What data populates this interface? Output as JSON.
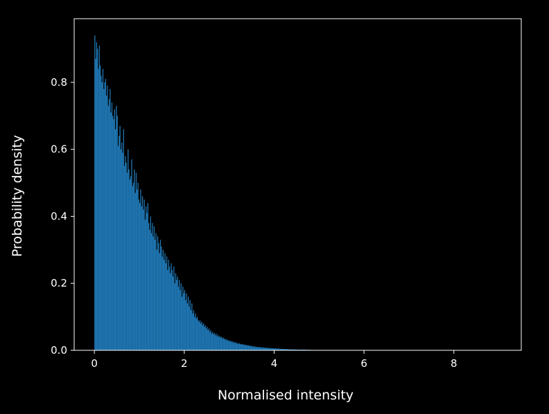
{
  "chart_data": {
    "type": "bar",
    "xlabel": "Normalised intensity",
    "ylabel": "Probability density",
    "xlim": [
      -0.45,
      9.5
    ],
    "ylim": [
      0,
      0.99
    ],
    "grid": false,
    "colors": {
      "background": "#000000",
      "bar": "#1f77b4",
      "axes": "#ffffff",
      "text": "#ffffff"
    },
    "x_ticks": [
      {
        "value": 0,
        "label": "0"
      },
      {
        "value": 2,
        "label": "2"
      },
      {
        "value": 4,
        "label": "4"
      },
      {
        "value": 6,
        "label": "6"
      },
      {
        "value": 8,
        "label": "8"
      }
    ],
    "y_ticks": [
      {
        "value": 0,
        "label": "0.0"
      },
      {
        "value": 0.2,
        "label": "0.2"
      },
      {
        "value": 0.4,
        "label": "0.4"
      },
      {
        "value": 0.6,
        "label": "0.6"
      },
      {
        "value": 0.8,
        "label": "0.8"
      }
    ],
    "bin_width": 0.02,
    "x_start": 0.0,
    "values": [
      0.94,
      0.87,
      0.92,
      0.9,
      0.84,
      0.91,
      0.85,
      0.82,
      0.8,
      0.84,
      0.78,
      0.8,
      0.81,
      0.76,
      0.79,
      0.73,
      0.75,
      0.78,
      0.71,
      0.74,
      0.7,
      0.69,
      0.72,
      0.66,
      0.73,
      0.7,
      0.61,
      0.64,
      0.67,
      0.6,
      0.62,
      0.59,
      0.66,
      0.55,
      0.58,
      0.56,
      0.53,
      0.6,
      0.54,
      0.51,
      0.52,
      0.57,
      0.49,
      0.5,
      0.54,
      0.47,
      0.53,
      0.48,
      0.5,
      0.45,
      0.44,
      0.48,
      0.43,
      0.46,
      0.42,
      0.45,
      0.39,
      0.43,
      0.41,
      0.44,
      0.38,
      0.36,
      0.4,
      0.35,
      0.38,
      0.34,
      0.37,
      0.33,
      0.35,
      0.3,
      0.34,
      0.32,
      0.29,
      0.33,
      0.31,
      0.28,
      0.3,
      0.27,
      0.29,
      0.26,
      0.28,
      0.24,
      0.27,
      0.25,
      0.23,
      0.26,
      0.24,
      0.22,
      0.25,
      0.2,
      0.23,
      0.21,
      0.22,
      0.19,
      0.21,
      0.18,
      0.2,
      0.16,
      0.19,
      0.17,
      0.18,
      0.15,
      0.17,
      0.14,
      0.16,
      0.13,
      0.15,
      0.12,
      0.14,
      0.11,
      0.12,
      0.1,
      0.11,
      0.095,
      0.1,
      0.09,
      0.085,
      0.09,
      0.08,
      0.085,
      0.075,
      0.08,
      0.07,
      0.075,
      0.065,
      0.07,
      0.06,
      0.065,
      0.055,
      0.06,
      0.05,
      0.055,
      0.048,
      0.052,
      0.045,
      0.05,
      0.042,
      0.046,
      0.04,
      0.043,
      0.038,
      0.04,
      0.035,
      0.038,
      0.033,
      0.035,
      0.03,
      0.033,
      0.028,
      0.03,
      0.027,
      0.029,
      0.025,
      0.027,
      0.023,
      0.025,
      0.022,
      0.024,
      0.02,
      0.022,
      0.019,
      0.021,
      0.018,
      0.019,
      0.017,
      0.018,
      0.016,
      0.017,
      0.015,
      0.016,
      0.014,
      0.015,
      0.013,
      0.014,
      0.012,
      0.013,
      0.011,
      0.012,
      0.01,
      0.011,
      0.01,
      0.01,
      0.009,
      0.01,
      0.009,
      0.009,
      0.008,
      0.009,
      0.008,
      0.008,
      0.007,
      0.008,
      0.007,
      0.007,
      0.006,
      0.007,
      0.006,
      0.006,
      0.006,
      0.006,
      0.005,
      0.006,
      0.005,
      0.005,
      0.005,
      0.005,
      0.004,
      0.005,
      0.004,
      0.004,
      0.004,
      0.004,
      0.004,
      0.003,
      0.004,
      0.003,
      0.003,
      0.003,
      0.003,
      0.003,
      0.003,
      0.002,
      0.003,
      0.002,
      0.003,
      0.002,
      0.002,
      0.002,
      0.002,
      0.002,
      0.002,
      0.002,
      0.002,
      0.002,
      0.002,
      0.002,
      0.001,
      0.002,
      0.001,
      0.002,
      0.001,
      0.001,
      0.001,
      0.001,
      0.001,
      0.001,
      0.001,
      0.001,
      0.001,
      0.001,
      0.001,
      0.001,
      0.001,
      0.001,
      0.001,
      0.001,
      0.001,
      0.001,
      0.001,
      0.001,
      0.001,
      0.001,
      0.001,
      0.001,
      0.001,
      0.001,
      0.001,
      0.001,
      0.001,
      0.001,
      0.001,
      0.001,
      0.001,
      0.001,
      0.001,
      0.001,
      0.001,
      0.001,
      0.001,
      0.001,
      0.001,
      0.001,
      0.001,
      0.001,
      0.001
    ]
  }
}
